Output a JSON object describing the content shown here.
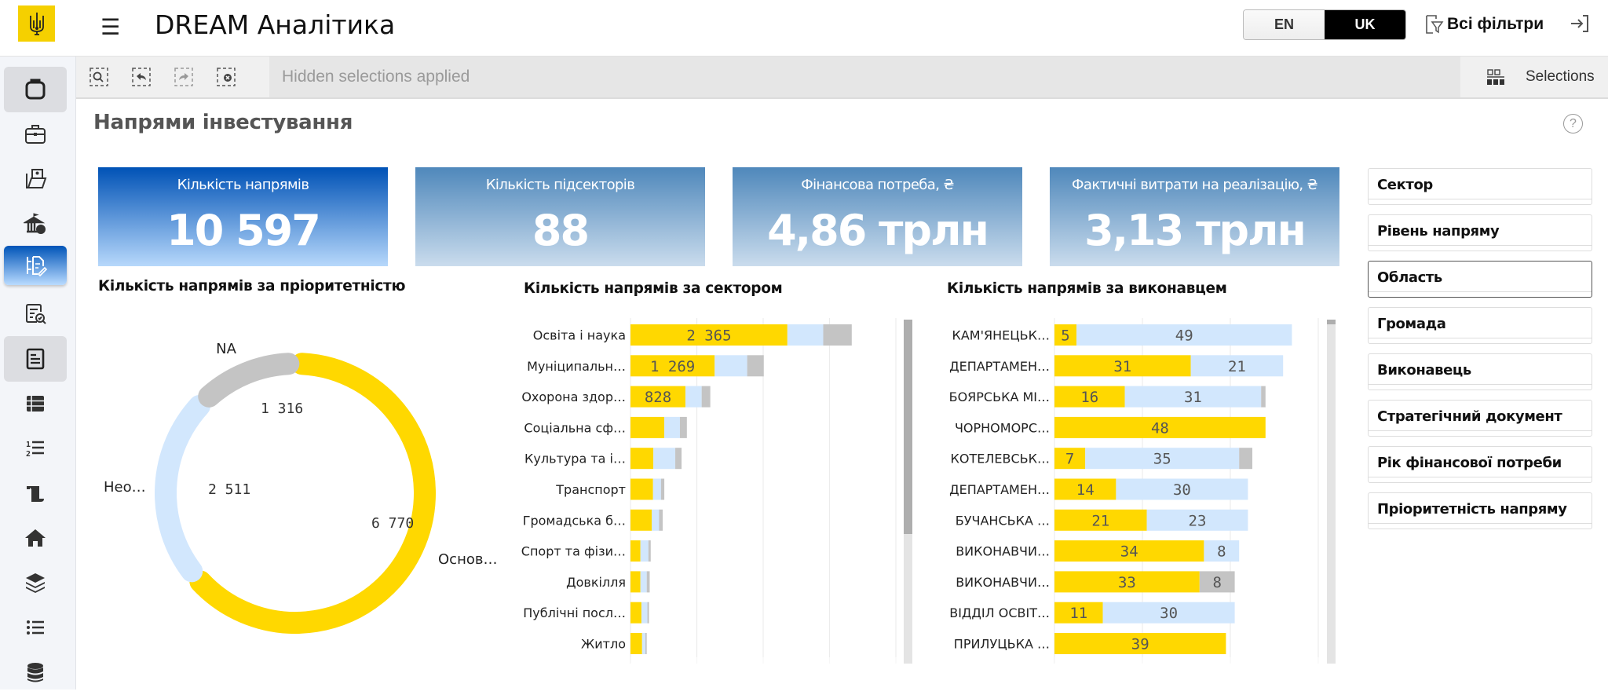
{
  "header": {
    "app_title": "DREAM Аналітика",
    "logo_icon": "ukraine-trident-icon",
    "lang_options": [
      "EN",
      "UK"
    ],
    "lang_selected": "UK",
    "filters_label": "Всі фільтри",
    "logout_icon": "logout-icon"
  },
  "sidebar": {
    "items": [
      {
        "icon": "clipboard-icon",
        "state": "gray"
      },
      {
        "icon": "briefcase-icon",
        "state": "normal"
      },
      {
        "icon": "folder-user-icon",
        "state": "normal"
      },
      {
        "icon": "bank-money-icon",
        "state": "normal"
      },
      {
        "icon": "document-flow-edit-icon",
        "state": "active"
      },
      {
        "icon": "checklist-search-icon",
        "state": "normal"
      },
      {
        "icon": "report-icon",
        "state": "gray"
      },
      {
        "icon": "table-list-icon",
        "state": "normal"
      },
      {
        "icon": "numbered-list-icon",
        "state": "normal"
      },
      {
        "icon": "scroll-icon",
        "state": "normal"
      },
      {
        "icon": "home-icon",
        "state": "normal"
      },
      {
        "icon": "layers-icon",
        "state": "normal"
      },
      {
        "icon": "bullet-list-icon",
        "state": "normal"
      },
      {
        "icon": "database-icon",
        "state": "normal"
      }
    ]
  },
  "toolbar": {
    "hidden_selections": "Hidden selections applied",
    "selections_label": "Selections"
  },
  "page": {
    "title": "Напрями інвестування",
    "help_symbol": "?"
  },
  "kpis": [
    {
      "label": "Кількість напрямів",
      "value": "10 597"
    },
    {
      "label": "Кількість підсекторів",
      "value": "88"
    },
    {
      "label": "Фінансова потреба, ₴",
      "value": "4,86 трлн"
    },
    {
      "label": "Фактичні витрати на реалізацію, ₴",
      "value": "3,13 трлн"
    }
  ],
  "filters": [
    {
      "label": "Сектор"
    },
    {
      "label": "Рівень напряму"
    },
    {
      "label": "Область",
      "focused": true
    },
    {
      "label": "Громада"
    },
    {
      "label": "Виконавець"
    },
    {
      "label": "Стратегічний документ"
    },
    {
      "label": "Рік фінансової потреби"
    },
    {
      "label": "Пріоритетність напряму"
    }
  ],
  "colors": {
    "primary": "#ffd800",
    "secondary": "#d2e7fd",
    "na": "#c4c4c4",
    "active_blue": "#0054b8"
  },
  "chart_data": [
    {
      "type": "pie",
      "title": "Кількість напрямів за пріоритетністю",
      "slices": [
        {
          "label": "Основ…",
          "value": 6770,
          "color": "#ffd800"
        },
        {
          "label": "Нео…",
          "value": 2511,
          "color": "#d2e7fd"
        },
        {
          "label": "NA",
          "value": 1316,
          "color": "#c4c4c4"
        }
      ],
      "value_labels": [
        "6 770",
        "2 511",
        "1 316"
      ]
    },
    {
      "type": "bar",
      "orientation": "horizontal",
      "stacked": true,
      "title": "Кількість напрямів за сектором",
      "categories": [
        "Освіта і наука",
        "Муніципальн…",
        "Охорона здор…",
        "Соціальна сф…",
        "Культура та і…",
        "Транспорт",
        "Громадська б…",
        "Спорт та фізи…",
        "Довкілля",
        "Публічні посл…",
        "Житло"
      ],
      "series": [
        {
          "name": "Основні",
          "color": "#ffd800",
          "values": [
            2365,
            1269,
            828,
            510,
            345,
            340,
            320,
            150,
            150,
            165,
            175
          ],
          "labels": [
            "2 365",
            "1 269",
            "828",
            "",
            "",
            "",
            "",
            "",
            "",
            "",
            ""
          ]
        },
        {
          "name": "Неосновні",
          "color": "#d2e7fd",
          "values": [
            540,
            490,
            245,
            235,
            330,
            120,
            110,
            120,
            95,
            90,
            50
          ],
          "labels": []
        },
        {
          "name": "NA",
          "color": "#c4c4c4",
          "values": [
            430,
            250,
            130,
            105,
            95,
            50,
            55,
            35,
            45,
            25,
            20
          ],
          "labels": []
        }
      ],
      "xlim": [
        0,
        4000
      ],
      "grid": true
    },
    {
      "type": "bar",
      "orientation": "horizontal",
      "stacked": true,
      "title": "Кількість напрямів за виконавцем",
      "categories": [
        "КАМ'ЯНЕЦЬК…",
        "ДЕПАРТАМЕН…",
        "БОЯРСЬКА МІ…",
        "ЧОРНОМОРС…",
        "КОТЕЛЕВСЬК…",
        "ДЕПАРТАМЕН…",
        "БУЧАНСЬКА …",
        "ВИКОНАВЧИ…",
        "ВИКОНАВЧИ…",
        "ВІДДІЛ ОСВІТ…",
        "ПРИЛУЦЬКА …"
      ],
      "series": [
        {
          "name": "Основні",
          "color": "#ffd800",
          "values": [
            5,
            31,
            16,
            48,
            7,
            14,
            21,
            34,
            33,
            11,
            39
          ]
        },
        {
          "name": "Неосновні",
          "color": "#d2e7fd",
          "values": [
            49,
            21,
            31,
            0,
            35,
            30,
            23,
            8,
            0,
            30,
            0
          ]
        },
        {
          "name": "NA",
          "color": "#c4c4c4",
          "values": [
            0,
            0,
            1,
            0,
            3,
            0,
            0,
            0,
            8,
            0,
            0
          ]
        }
      ],
      "xlim": [
        0,
        60
      ],
      "grid": true
    }
  ]
}
